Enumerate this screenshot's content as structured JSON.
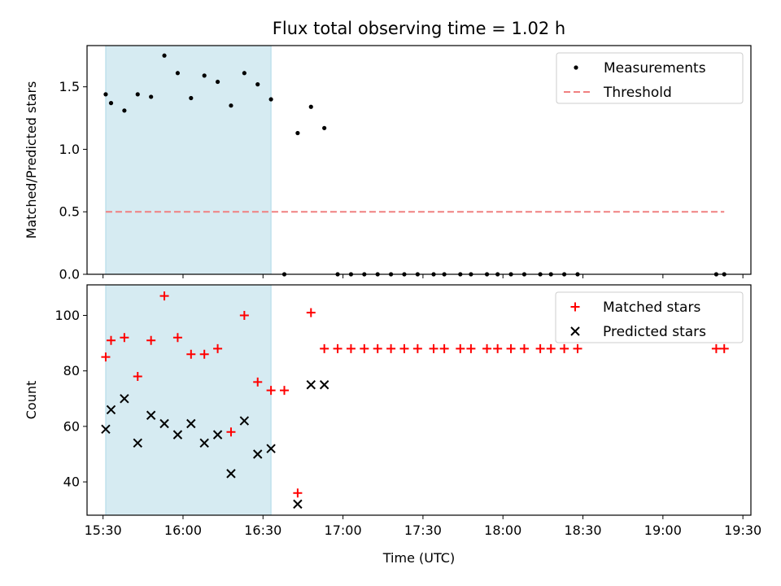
{
  "chart_data": {
    "title": "Flux total observing time = 1.02 h",
    "shared_x": {
      "label": "Time (UTC)",
      "ticks": [
        "15:30",
        "16:00",
        "16:30",
        "17:00",
        "17:30",
        "18:00",
        "18:30",
        "19:00",
        "19:30"
      ],
      "range": [
        "15:24",
        "19:33"
      ]
    },
    "highlight_span": {
      "start": "15:31",
      "end": "16:33",
      "color": "#add8e6"
    },
    "panels": [
      {
        "type": "scatter",
        "ylabel": "Matched/Predicted stars",
        "ylim": [
          0,
          1.83
        ],
        "yticks": [
          "0.0",
          "0.5",
          "1.0",
          "1.5"
        ],
        "legend_position": "top-right",
        "series": [
          {
            "name": "Measurements",
            "color": "#000000",
            "marker": "dot",
            "points": [
              [
                "15:31",
                1.44
              ],
              [
                "15:33",
                1.37
              ],
              [
                "15:38",
                1.31
              ],
              [
                "15:43",
                1.44
              ],
              [
                "15:48",
                1.42
              ],
              [
                "15:53",
                1.75
              ],
              [
                "15:58",
                1.61
              ],
              [
                "16:03",
                1.41
              ],
              [
                "16:08",
                1.59
              ],
              [
                "16:13",
                1.54
              ],
              [
                "16:18",
                1.35
              ],
              [
                "16:23",
                1.61
              ],
              [
                "16:28",
                1.52
              ],
              [
                "16:33",
                1.4
              ],
              [
                "16:38",
                0.0
              ],
              [
                "16:43",
                1.13
              ],
              [
                "16:48",
                1.34
              ],
              [
                "16:53",
                1.17
              ],
              [
                "16:58",
                0.0
              ],
              [
                "17:03",
                0.0
              ],
              [
                "17:08",
                0.0
              ],
              [
                "17:13",
                0.0
              ],
              [
                "17:18",
                0.0
              ],
              [
                "17:23",
                0.0
              ],
              [
                "17:28",
                0.0
              ],
              [
                "17:34",
                0.0
              ],
              [
                "17:38",
                0.0
              ],
              [
                "17:44",
                0.0
              ],
              [
                "17:48",
                0.0
              ],
              [
                "17:54",
                0.0
              ],
              [
                "17:58",
                0.0
              ],
              [
                "18:03",
                0.0
              ],
              [
                "18:08",
                0.0
              ],
              [
                "18:14",
                0.0
              ],
              [
                "18:18",
                0.0
              ],
              [
                "18:23",
                0.0
              ],
              [
                "18:28",
                0.0
              ],
              [
                "19:20",
                0.0
              ],
              [
                "19:23",
                0.0
              ]
            ]
          },
          {
            "name": "Threshold",
            "color": "#f08080",
            "style": "dashed-line",
            "points": [
              [
                "15:31",
                0.5
              ],
              [
                "19:23",
                0.5
              ]
            ]
          }
        ]
      },
      {
        "type": "scatter",
        "ylabel": "Count",
        "ylim": [
          28,
          111
        ],
        "yticks": [
          "40",
          "60",
          "80",
          "100"
        ],
        "legend_position": "top-right",
        "series": [
          {
            "name": "Matched stars",
            "color": "#ff0000",
            "marker": "plus",
            "points": [
              [
                "15:31",
                85
              ],
              [
                "15:33",
                91
              ],
              [
                "15:38",
                92
              ],
              [
                "15:43",
                78
              ],
              [
                "15:48",
                91
              ],
              [
                "15:53",
                107
              ],
              [
                "15:58",
                92
              ],
              [
                "16:03",
                86
              ],
              [
                "16:08",
                86
              ],
              [
                "16:13",
                88
              ],
              [
                "16:18",
                58
              ],
              [
                "16:23",
                100
              ],
              [
                "16:28",
                76
              ],
              [
                "16:33",
                73
              ],
              [
                "16:38",
                73
              ],
              [
                "16:43",
                36
              ],
              [
                "16:48",
                101
              ],
              [
                "16:53",
                88
              ],
              [
                "16:58",
                88
              ],
              [
                "17:03",
                88
              ],
              [
                "17:08",
                88
              ],
              [
                "17:13",
                88
              ],
              [
                "17:18",
                88
              ],
              [
                "17:23",
                88
              ],
              [
                "17:28",
                88
              ],
              [
                "17:34",
                88
              ],
              [
                "17:38",
                88
              ],
              [
                "17:44",
                88
              ],
              [
                "17:48",
                88
              ],
              [
                "17:54",
                88
              ],
              [
                "17:58",
                88
              ],
              [
                "18:03",
                88
              ],
              [
                "18:08",
                88
              ],
              [
                "18:14",
                88
              ],
              [
                "18:18",
                88
              ],
              [
                "18:23",
                88
              ],
              [
                "18:28",
                88
              ],
              [
                "19:20",
                88
              ],
              [
                "19:23",
                88
              ]
            ]
          },
          {
            "name": "Predicted stars",
            "color": "#000000",
            "marker": "x",
            "points": [
              [
                "15:31",
                59
              ],
              [
                "15:33",
                66
              ],
              [
                "15:38",
                70
              ],
              [
                "15:43",
                54
              ],
              [
                "15:48",
                64
              ],
              [
                "15:53",
                61
              ],
              [
                "15:58",
                57
              ],
              [
                "16:03",
                61
              ],
              [
                "16:08",
                54
              ],
              [
                "16:13",
                57
              ],
              [
                "16:18",
                43
              ],
              [
                "16:23",
                62
              ],
              [
                "16:28",
                50
              ],
              [
                "16:33",
                52
              ],
              [
                "16:43",
                32
              ],
              [
                "16:48",
                75
              ],
              [
                "16:53",
                75
              ]
            ]
          }
        ]
      }
    ]
  }
}
